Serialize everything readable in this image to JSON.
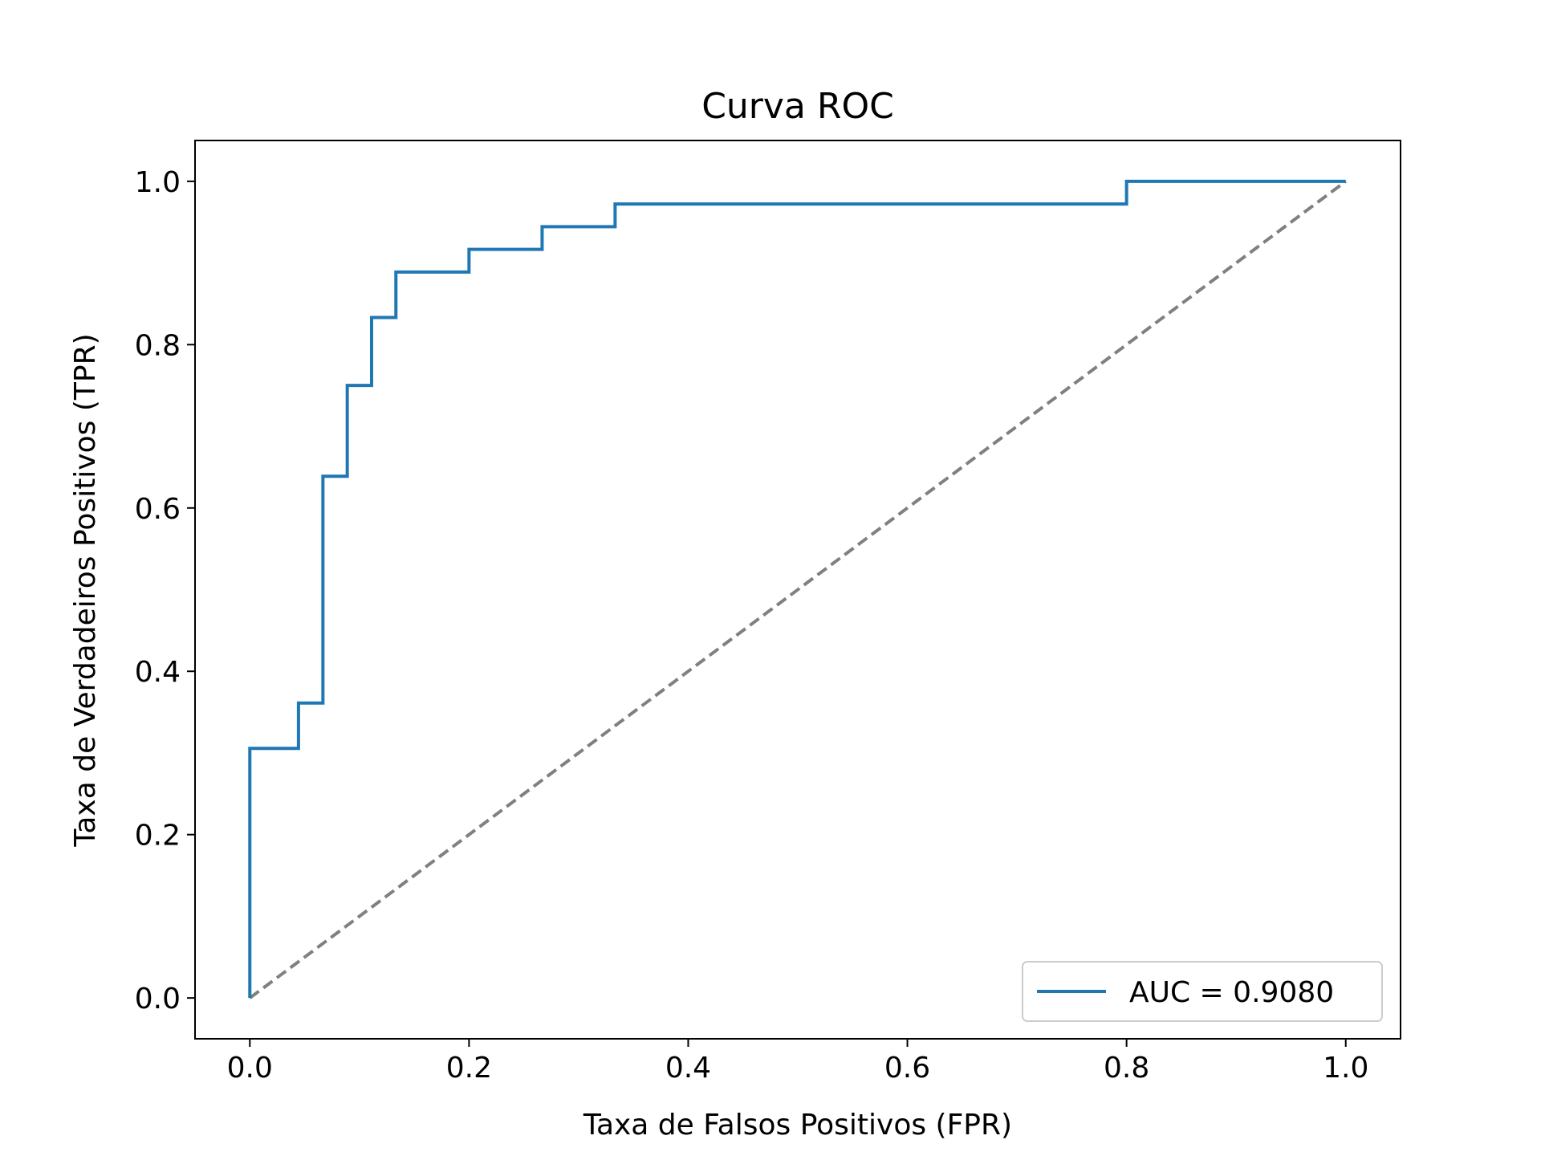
{
  "chart_data": {
    "type": "line",
    "title": "Curva ROC",
    "xlabel": "Taxa de Falsos Positivos (FPR)",
    "ylabel": "Taxa de Verdadeiros Positivos (TPR)",
    "xlim": [
      -0.05,
      1.05
    ],
    "ylim": [
      -0.05,
      1.05
    ],
    "xticks": [
      0.0,
      0.2,
      0.4,
      0.6,
      0.8,
      1.0
    ],
    "yticks": [
      0.0,
      0.2,
      0.4,
      0.6,
      0.8,
      1.0
    ],
    "xtick_labels": [
      "0.0",
      "0.2",
      "0.4",
      "0.6",
      "0.8",
      "1.0"
    ],
    "ytick_labels": [
      "0.0",
      "0.2",
      "0.4",
      "0.6",
      "0.8",
      "1.0"
    ],
    "grid": false,
    "legend_position": "lower right",
    "series": [
      {
        "name": "AUC = 0.9080",
        "color": "#1f77b4",
        "style": "solid",
        "x": [
          0.0,
          0.0,
          0.0444,
          0.0444,
          0.0667,
          0.0667,
          0.0889,
          0.0889,
          0.1111,
          0.1111,
          0.1333,
          0.1333,
          0.2,
          0.2,
          0.2667,
          0.2667,
          0.3333,
          0.3333,
          0.8,
          0.8,
          1.0
        ],
        "y": [
          0.0,
          0.3056,
          0.3056,
          0.3611,
          0.3611,
          0.6389,
          0.6389,
          0.75,
          0.75,
          0.8333,
          0.8333,
          0.8889,
          0.8889,
          0.9167,
          0.9167,
          0.9444,
          0.9444,
          0.9722,
          0.9722,
          1.0,
          1.0
        ]
      },
      {
        "color": "#808080",
        "style": "dashed",
        "x": [
          0.0,
          1.0
        ],
        "y": [
          0.0,
          1.0
        ]
      }
    ]
  }
}
